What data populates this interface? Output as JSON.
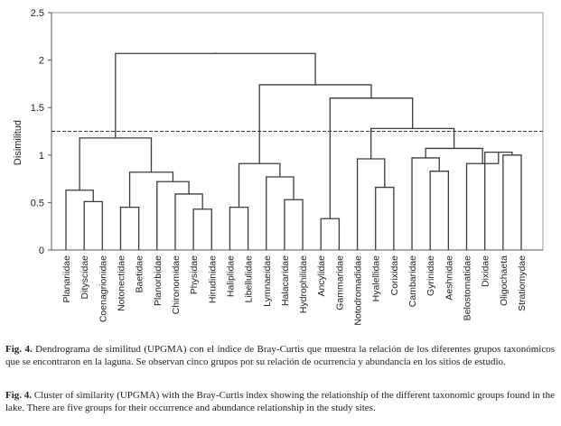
{
  "chart_data": {
    "type": "dendrogram",
    "ylabel": "Disimilitud",
    "ylim": [
      0,
      2.5
    ],
    "yticks": [
      "0",
      "0.5",
      "1",
      "1.5",
      "2",
      "2.5"
    ],
    "threshold": 1.25,
    "leaves": [
      "Planariidae",
      "Dityscidae",
      "Coenagrionidae",
      "Notonectidae",
      "Baetidae",
      "Planorbidae",
      "Chironomidae",
      "Physidae",
      "Hirudinidae",
      "Haliplidae",
      "Libellulidae",
      "Lymnaeidae",
      "Halacaridae",
      "Hydrophilidae",
      "Ancylidae",
      "Gammaridae",
      "Notodromadidae",
      "Hyalellidae",
      "Corixidae",
      "Cambaridae",
      "Gyrinidae",
      "Aeshnidae",
      "Belostomatidae",
      "Dixidae",
      "Oligochaeta",
      "Stratiomydae"
    ],
    "merges": [
      {
        "a": "L1",
        "b": "L2",
        "h": 0.51
      },
      {
        "a": "L0",
        "b": "N0",
        "h": 0.63
      },
      {
        "a": "L7",
        "b": "L8",
        "h": 0.43
      },
      {
        "a": "L6",
        "b": "N2",
        "h": 0.59
      },
      {
        "a": "L5",
        "b": "N3",
        "h": 0.72
      },
      {
        "a": "L3",
        "b": "L4",
        "h": 0.45
      },
      {
        "a": "N5",
        "b": "N4",
        "h": 0.82
      },
      {
        "a": "N1",
        "b": "N6",
        "h": 1.18
      },
      {
        "a": "L12",
        "b": "L13",
        "h": 0.53
      },
      {
        "a": "L11",
        "b": "N8",
        "h": 0.77
      },
      {
        "a": "L9",
        "b": "L10",
        "h": 0.45
      },
      {
        "a": "N10",
        "b": "N9",
        "h": 0.91
      },
      {
        "a": "L14",
        "b": "L15",
        "h": 0.33
      },
      {
        "a": "L17",
        "b": "L18",
        "h": 0.66
      },
      {
        "a": "L16",
        "b": "N13",
        "h": 0.96
      },
      {
        "a": "L20",
        "b": "L21",
        "h": 0.83
      },
      {
        "a": "L19",
        "b": "N15",
        "h": 0.97
      },
      {
        "a": "L24",
        "b": "L25",
        "h": 1.0
      },
      {
        "a": "L23",
        "b": "N17",
        "h": 1.03
      },
      {
        "a": "L22",
        "b": "N18",
        "h": 0.91
      },
      {
        "a": "N16",
        "b": "N19",
        "h": 1.07
      },
      {
        "a": "N14",
        "b": "N20",
        "h": 1.28
      },
      {
        "a": "N12",
        "b": "N21",
        "h": 1.6
      },
      {
        "a": "N11",
        "b": "N22",
        "h": 1.74
      },
      {
        "a": "N7",
        "b": "N23",
        "h": 2.07
      }
    ]
  },
  "caption_es": {
    "fig": "Fig. 4.",
    "text": "Dendrograma de similitud (UPGMA) con el índice de Bray-Curtis que muestra la relación de los diferentes grupos taxonómicos que se encontraron en la laguna. Se observan cinco grupos por su relación de ocurrencia y abundancia en los sitios de estudio."
  },
  "caption_en": {
    "fig": "Fig. 4.",
    "text": "Cluster of similarity (UPGMA) with the Bray-Curtis index showing the relationship of the different taxonomic groups found in the lake. There are five groups for their occurrence and abundance relationship in the study sites."
  }
}
